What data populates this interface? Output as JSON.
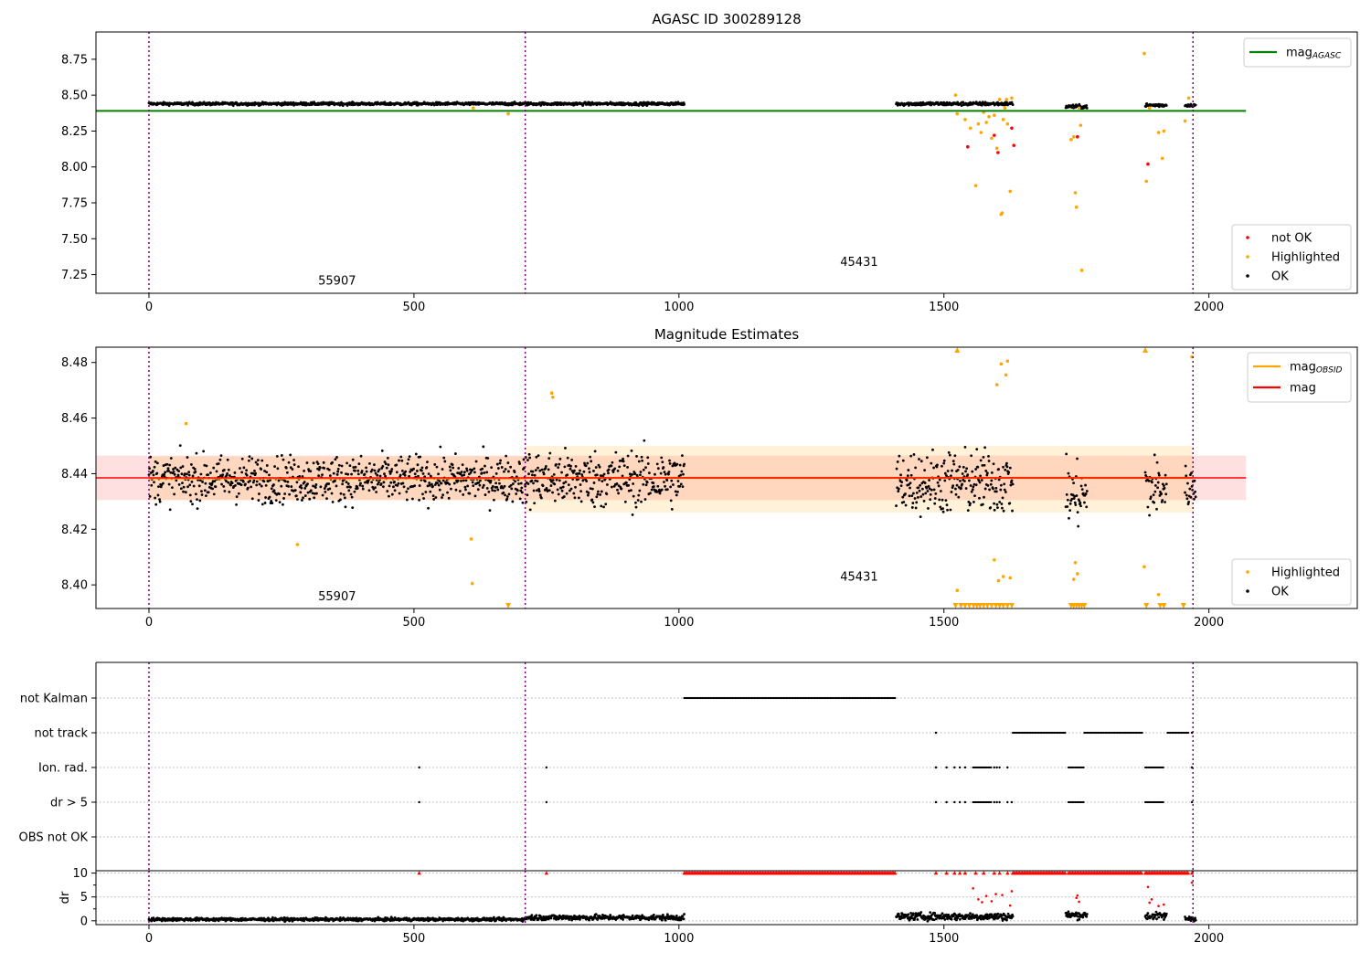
{
  "chart_data": [
    {
      "type": "scatter",
      "title": "AGASC ID 300289128",
      "xlim": [
        -100,
        2280
      ],
      "ylim": [
        7.12,
        8.94
      ],
      "xticks": [
        0,
        500,
        1000,
        1500,
        2000
      ],
      "yticks": [
        7.25,
        7.5,
        7.75,
        8.0,
        8.25,
        8.5,
        8.75
      ],
      "ytick_labels": [
        "7.25",
        "7.50",
        "7.75",
        "8.00",
        "8.25",
        "8.50",
        "8.75"
      ],
      "obs_boundaries": [
        0,
        710,
        1970
      ],
      "obs_labels": [
        {
          "text": "55907",
          "x": 355,
          "y": 7.18
        },
        {
          "text": "45431",
          "x": 1340,
          "y": 7.31
        }
      ],
      "mag_agasc": 8.39,
      "mag_agasc_x": [
        -100,
        2070
      ],
      "ok_segments": [
        {
          "x": [
            0,
            1010
          ],
          "center": 8.44,
          "spread": 0.008
        },
        {
          "x": [
            1410,
            1630
          ],
          "center": 8.44,
          "spread": 0.01
        },
        {
          "x": [
            1730,
            1770
          ],
          "center": 8.42,
          "spread": 0.01
        },
        {
          "x": [
            1880,
            1920
          ],
          "center": 8.43,
          "spread": 0.01
        },
        {
          "x": [
            1955,
            1975
          ],
          "center": 8.43,
          "spread": 0.008
        }
      ],
      "highlighted": [
        [
          612,
          8.41
        ],
        [
          678,
          8.37
        ],
        [
          1522,
          8.5
        ],
        [
          1525,
          8.37
        ],
        [
          1540,
          8.33
        ],
        [
          1550,
          8.27
        ],
        [
          1560,
          7.87
        ],
        [
          1565,
          8.3
        ],
        [
          1570,
          8.24
        ],
        [
          1575,
          8.38
        ],
        [
          1580,
          8.31
        ],
        [
          1585,
          8.35
        ],
        [
          1590,
          8.2
        ],
        [
          1595,
          8.36
        ],
        [
          1600,
          8.13
        ],
        [
          1605,
          8.47
        ],
        [
          1608,
          7.67
        ],
        [
          1610,
          7.68
        ],
        [
          1612,
          8.33
        ],
        [
          1615,
          8.41
        ],
        [
          1618,
          8.47
        ],
        [
          1620,
          8.3
        ],
        [
          1625,
          7.83
        ],
        [
          1628,
          8.48
        ],
        [
          1740,
          8.19
        ],
        [
          1745,
          8.21
        ],
        [
          1748,
          7.82
        ],
        [
          1750,
          7.72
        ],
        [
          1755,
          8.41
        ],
        [
          1758,
          8.29
        ],
        [
          1760,
          7.28
        ],
        [
          1878,
          8.79
        ],
        [
          1882,
          7.9
        ],
        [
          1888,
          8.41
        ],
        [
          1905,
          8.24
        ],
        [
          1912,
          8.06
        ],
        [
          1915,
          8.25
        ],
        [
          1955,
          8.32
        ],
        [
          1962,
          8.48
        ]
      ],
      "not_ok": [
        [
          1545,
          8.14
        ],
        [
          1595,
          8.22
        ],
        [
          1602,
          8.1
        ],
        [
          1628,
          8.27
        ],
        [
          1632,
          8.15
        ],
        [
          1752,
          8.21
        ],
        [
          1885,
          8.02
        ]
      ],
      "legend_lines": [
        {
          "label": "mag",
          "sub": "AGASC",
          "color": "#008000"
        }
      ],
      "legend_markers": [
        {
          "label": "not OK",
          "color": "#ff0000"
        },
        {
          "label": "Highlighted",
          "color": "#ffa500"
        },
        {
          "label": "OK",
          "color": "#000000"
        }
      ]
    },
    {
      "type": "scatter",
      "title": "Magnitude Estimates",
      "xlim": [
        -100,
        2280
      ],
      "ylim": [
        8.3915,
        8.4855
      ],
      "xticks": [
        0,
        500,
        1000,
        1500,
        2000
      ],
      "yticks": [
        8.4,
        8.42,
        8.44,
        8.46,
        8.48
      ],
      "ytick_labels": [
        "8.40",
        "8.42",
        "8.44",
        "8.46",
        "8.48"
      ],
      "obs_boundaries": [
        0,
        710,
        1970
      ],
      "obs_labels": [
        {
          "text": "55907",
          "x": 355,
          "y": 8.3945
        },
        {
          "text": "45431",
          "x": 1340,
          "y": 8.4015
        }
      ],
      "mag": 8.4385,
      "mag_band": [
        8.4305,
        8.4465
      ],
      "mag_x": [
        -100,
        2070
      ],
      "mag_obsid": [
        {
          "x": [
            0,
            710
          ],
          "value": 8.4383,
          "band": [
            8.4305,
            8.4462
          ]
        },
        {
          "x": [
            710,
            1970
          ],
          "value": 8.4385,
          "band": [
            8.426,
            8.45
          ]
        }
      ],
      "ok_segments": [
        {
          "x": [
            0,
            710
          ],
          "center": 8.438,
          "spread": 0.0065
        },
        {
          "x": [
            710,
            1010
          ],
          "center": 8.438,
          "spread": 0.008
        },
        {
          "x": [
            1410,
            1630
          ],
          "center": 8.437,
          "spread": 0.009
        },
        {
          "x": [
            1730,
            1770
          ],
          "center": 8.432,
          "spread": 0.009
        },
        {
          "x": [
            1880,
            1920
          ],
          "center": 8.435,
          "spread": 0.009
        },
        {
          "x": [
            1955,
            1975
          ],
          "center": 8.435,
          "spread": 0.006
        }
      ],
      "highlighted": [
        [
          70,
          8.458
        ],
        [
          280,
          8.4145
        ],
        [
          608,
          8.4165
        ],
        [
          610,
          8.4005
        ],
        [
          760,
          8.469
        ],
        [
          762,
          8.4675
        ],
        [
          1525,
          8.398
        ],
        [
          1595,
          8.409
        ],
        [
          1600,
          8.472
        ],
        [
          1603,
          8.4015
        ],
        [
          1608,
          8.4795
        ],
        [
          1612,
          8.403
        ],
        [
          1617,
          8.4755
        ],
        [
          1620,
          8.4805
        ],
        [
          1625,
          8.4025
        ],
        [
          1745,
          8.402
        ],
        [
          1748,
          8.408
        ],
        [
          1752,
          8.404
        ],
        [
          1878,
          8.4065
        ],
        [
          1905,
          8.3965
        ],
        [
          1968,
          8.482
        ]
      ],
      "highlighted_clipped_top": [
        1525,
        1880
      ],
      "highlighted_clipped_bottom": [
        678,
        1522,
        1532,
        1540,
        1548,
        1556,
        1562,
        1568,
        1575,
        1582,
        1590,
        1598,
        1605,
        1612,
        1620,
        1628,
        1740,
        1745,
        1750,
        1755,
        1760,
        1765,
        1882,
        1908,
        1915,
        1952
      ],
      "legend_lines": [
        {
          "label": "mag",
          "sub": "OBSID",
          "color": "#ffa500"
        },
        {
          "label": "mag",
          "sub": "",
          "color": "#ff0000"
        }
      ],
      "legend_markers": [
        {
          "label": "Highlighted",
          "color": "#ffa500"
        },
        {
          "label": "OK",
          "color": "#000000"
        }
      ]
    },
    {
      "type": "scatter",
      "xlim": [
        -100,
        2280
      ],
      "xticks": [
        0,
        500,
        1000,
        1500,
        2000
      ],
      "obs_boundaries": [
        0,
        710,
        1970
      ],
      "flag_rows": [
        "not Kalman",
        "not track",
        "Ion. rad.",
        "dr > 5",
        "OBS not OK"
      ],
      "flags": {
        "not Kalman": {
          "ranges": [
            [
              1010,
              1410
            ]
          ],
          "points": []
        },
        "not track": {
          "ranges": [
            [
              1630,
              1730
            ],
            [
              1765,
              1875
            ],
            [
              1922,
              1962
            ]
          ],
          "points": [
            1485,
            1968
          ]
        },
        "Ion. rad.": {
          "ranges": [
            [
              1555,
              1590
            ],
            [
              1735,
              1765
            ],
            [
              1880,
              1915
            ]
          ],
          "points": [
            510,
            750,
            1485,
            1505,
            1520,
            1530,
            1540,
            1595,
            1600,
            1605,
            1620,
            1968
          ]
        },
        "dr > 5": {
          "ranges": [
            [
              1555,
              1590
            ],
            [
              1735,
              1765
            ],
            [
              1880,
              1915
            ]
          ],
          "points": [
            510,
            750,
            1485,
            1505,
            1520,
            1530,
            1540,
            1595,
            1600,
            1605,
            1620,
            1628,
            1968
          ]
        },
        "OBS not OK": {
          "ranges": [],
          "points": []
        }
      },
      "dr": {
        "ylabel": "dr",
        "ylim": [
          -0.8,
          10.5
        ],
        "yticks": [
          0,
          5,
          10
        ],
        "ytick_labels": [
          "0",
          "5",
          "10"
        ],
        "clip_red_ranges": [
          [
            1010,
            1410
          ],
          [
            1630,
            1730
          ],
          [
            1735,
            1875
          ],
          [
            1880,
            1962
          ]
        ],
        "clip_red_points": [
          510,
          750,
          1485,
          1505,
          1520,
          1530,
          1540,
          1560,
          1575,
          1595,
          1605,
          1620,
          1968
        ],
        "ok_segments": [
          {
            "x": [
              0,
              710
            ],
            "center": 0.3,
            "spread": 0.25
          },
          {
            "x": [
              710,
              1010
            ],
            "center": 0.7,
            "spread": 0.45
          },
          {
            "x": [
              1410,
              1630
            ],
            "center": 0.9,
            "spread": 0.6
          },
          {
            "x": [
              1730,
              1770
            ],
            "center": 1.2,
            "spread": 0.6
          },
          {
            "x": [
              1880,
              1920
            ],
            "center": 1.0,
            "spread": 0.6
          },
          {
            "x": [
              1955,
              1975
            ],
            "center": 0.5,
            "spread": 0.4
          }
        ],
        "red": [
          [
            1555,
            6.8
          ],
          [
            1565,
            4.5
          ],
          [
            1572,
            3.9
          ],
          [
            1580,
            5.2
          ],
          [
            1590,
            4.1
          ],
          [
            1598,
            5.6
          ],
          [
            1610,
            5.4
          ],
          [
            1625,
            3.2
          ],
          [
            1628,
            6.2
          ],
          [
            1750,
            4.8
          ],
          [
            1752,
            5.3
          ],
          [
            1755,
            4.0
          ],
          [
            1885,
            7.1
          ],
          [
            1888,
            3.8
          ],
          [
            1892,
            4.5
          ],
          [
            1905,
            3.1
          ],
          [
            1915,
            3.4
          ],
          [
            1968,
            8.0
          ]
        ]
      }
    }
  ]
}
